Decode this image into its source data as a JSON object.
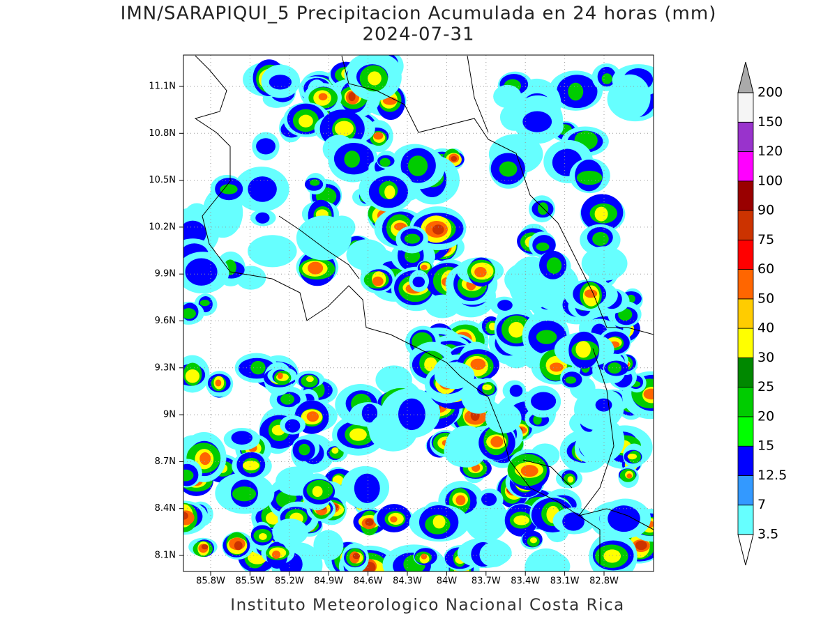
{
  "title": "IMN/SARAPIQUI_5 Precipitacion Acumulada en 24 horas (mm)",
  "subtitle": "2024-07-31",
  "footer": "Instituto Meteorologico Nacional Costa Rica",
  "map": {
    "lat_ticks": [
      "11.1N",
      "10.8N",
      "10.5N",
      "10.2N",
      "9.9N",
      "9.6N",
      "9.3N",
      "9N",
      "8.7N",
      "8.4N",
      "8.1N"
    ],
    "lon_ticks": [
      "85.8W",
      "85.5W",
      "85.2W",
      "84.9W",
      "84.6W",
      "84.3W",
      "84W",
      "83.7W",
      "83.4W",
      "83.1W",
      "82.8W"
    ]
  },
  "colorbar": {
    "levels": [
      3.5,
      7,
      12.5,
      15,
      20,
      25,
      30,
      40,
      50,
      60,
      75,
      90,
      100,
      120,
      150,
      200
    ],
    "colors": [
      "#66ffff",
      "#3399ff",
      "#0000ff",
      "#00ff00",
      "#00cc00",
      "#008800",
      "#ffff00",
      "#ffcc00",
      "#ff6600",
      "#ff0000",
      "#cc3300",
      "#990000",
      "#ff00ff",
      "#9933cc",
      "#f5f5f5"
    ],
    "over_color": "#aaaaaa",
    "under_color": "#ffffff"
  }
}
